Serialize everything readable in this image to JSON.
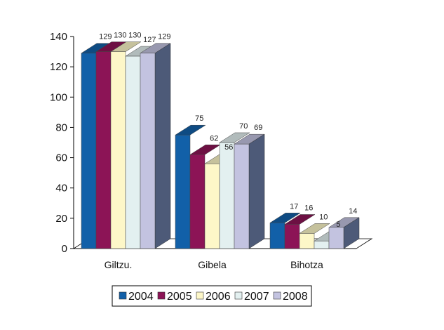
{
  "chart_data": {
    "type": "bar",
    "title": "",
    "xlabel": "",
    "ylabel": "",
    "ylim": [
      0,
      140
    ],
    "yticks": [
      0,
      20,
      40,
      60,
      80,
      100,
      120,
      140
    ],
    "categories": [
      "Giltzu.",
      "Gibela",
      "Bihotza"
    ],
    "series": [
      {
        "name": "2004",
        "values": [
          129,
          75,
          17
        ],
        "labels": [
          "129",
          "75",
          "17"
        ],
        "color": "#1260a8"
      },
      {
        "name": "2005",
        "values": [
          130,
          62,
          16
        ],
        "labels": [
          "130",
          "62",
          "16"
        ],
        "color": "#8c1456"
      },
      {
        "name": "2006",
        "values": [
          130,
          56,
          10
        ],
        "labels": [
          "130",
          "56",
          "10"
        ],
        "color": "#fdf7c8"
      },
      {
        "name": "2007",
        "values": [
          127,
          70,
          5
        ],
        "labels": [
          "127",
          "70",
          "5"
        ],
        "color": "#e3f0f0"
      },
      {
        "name": "2008",
        "values": [
          129,
          69,
          14
        ],
        "labels": [
          "129",
          "69",
          "14"
        ],
        "color": "#c3c3e0"
      }
    ],
    "grid": false,
    "legend_position": "bottom"
  }
}
